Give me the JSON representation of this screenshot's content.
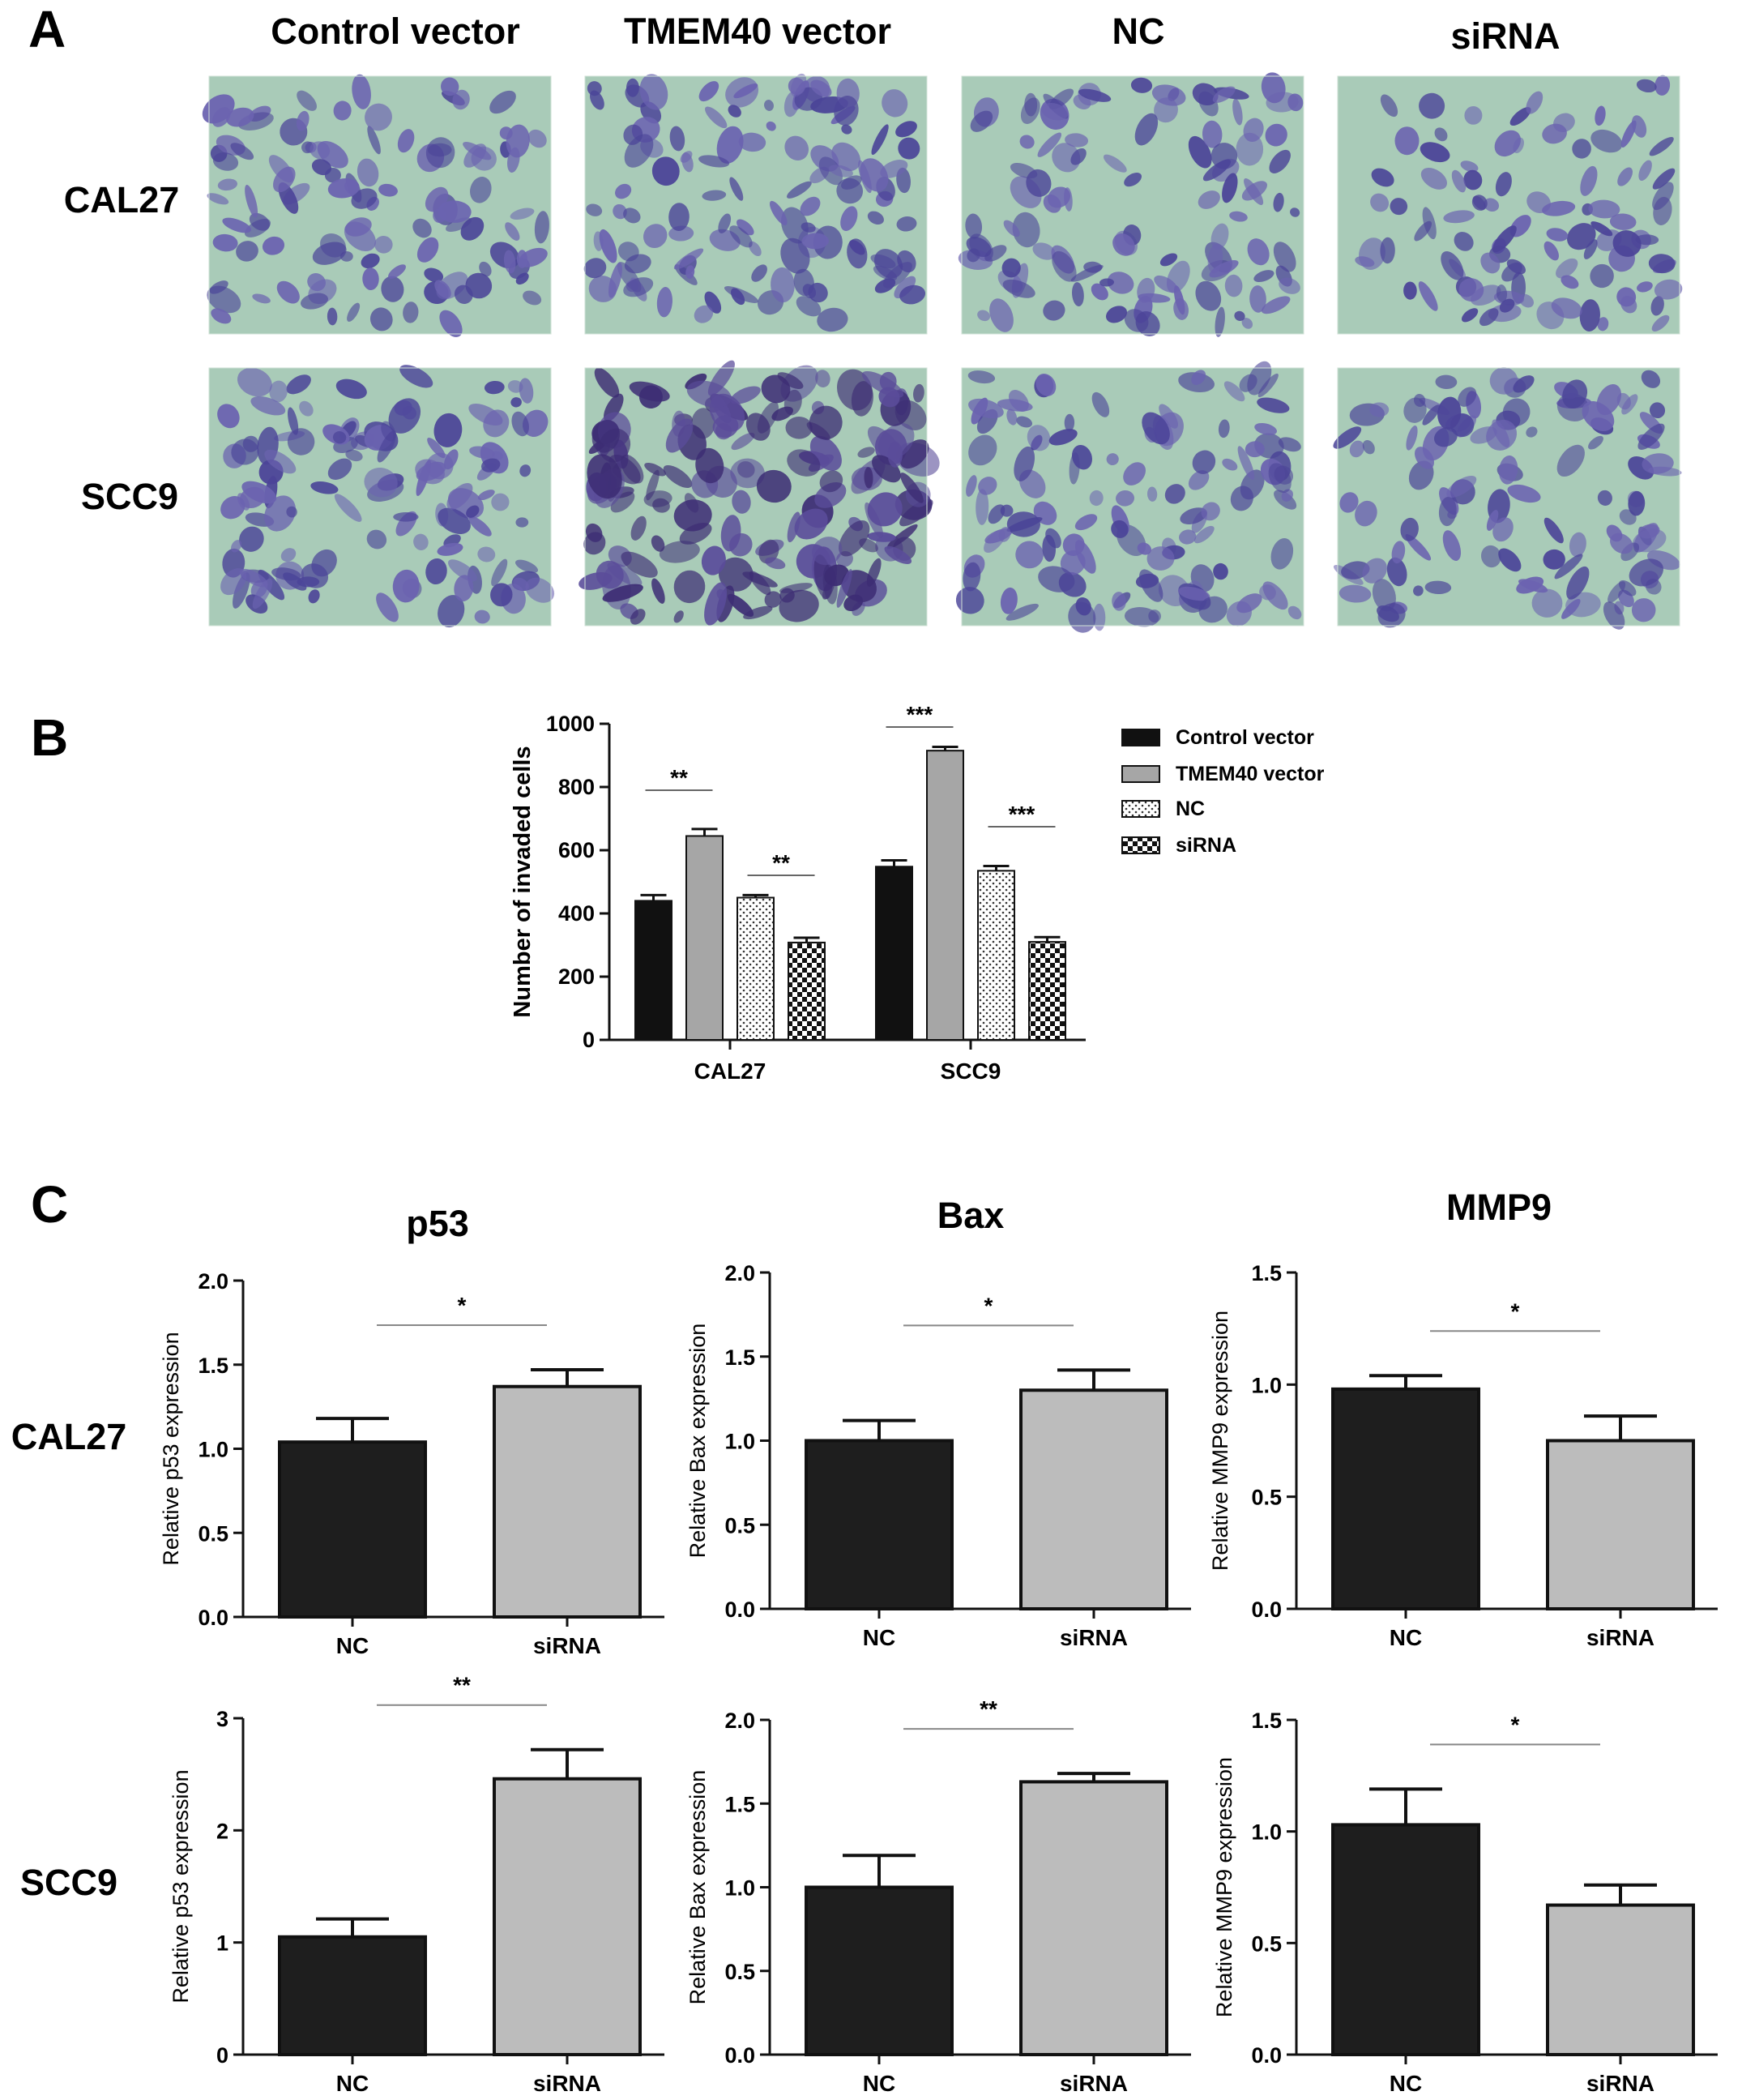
{
  "panels": {
    "a": "A",
    "b": "B",
    "c": "C"
  },
  "panel_a": {
    "columns": [
      "Control vector",
      "TMEM40 vector",
      "NC",
      "siRNA"
    ],
    "rows": [
      "CAL27",
      "SCC9"
    ],
    "tile_density": [
      [
        0.4,
        0.48,
        0.4,
        0.3
      ],
      [
        0.48,
        0.8,
        0.46,
        0.42
      ]
    ]
  },
  "chart_data": [
    {
      "type": "bar",
      "id": "B",
      "ylabel": "Number of invaded cells",
      "categories": [
        "CAL27",
        "SCC9"
      ],
      "series": [
        {
          "name": "Control vector",
          "values": [
            440,
            548
          ],
          "errors": [
            18,
            20
          ],
          "fill": "solid-black"
        },
        {
          "name": "TMEM40 vector",
          "values": [
            645,
            915
          ],
          "errors": [
            22,
            12
          ],
          "fill": "grey"
        },
        {
          "name": "NC",
          "values": [
            450,
            535
          ],
          "errors": [
            8,
            15
          ],
          "fill": "dotted"
        },
        {
          "name": "siRNA",
          "values": [
            308,
            310
          ],
          "errors": [
            15,
            15
          ],
          "fill": "checkered"
        }
      ],
      "ylim": [
        0,
        1000
      ],
      "yticks": [
        0,
        200,
        400,
        600,
        800,
        1000
      ],
      "significance": [
        {
          "category": "CAL27",
          "pair": [
            "Control vector",
            "TMEM40 vector"
          ],
          "label": "**"
        },
        {
          "category": "CAL27",
          "pair": [
            "NC",
            "siRNA"
          ],
          "label": "**"
        },
        {
          "category": "SCC9",
          "pair": [
            "Control vector",
            "TMEM40 vector"
          ],
          "label": "***"
        },
        {
          "category": "SCC9",
          "pair": [
            "NC",
            "siRNA"
          ],
          "label": "***"
        }
      ],
      "legend_position": "right"
    },
    {
      "type": "bar",
      "id": "C-p53-CAL27",
      "title": "p53",
      "row": "CAL27",
      "ylabel": "Relative p53 expression",
      "categories": [
        "NC",
        "siRNA"
      ],
      "values": [
        1.04,
        1.37
      ],
      "errors": [
        0.14,
        0.1
      ],
      "ylim": [
        0,
        2.0
      ],
      "yticks": [
        "0.0",
        "0.5",
        "1.0",
        "1.5",
        "2.0"
      ],
      "significance": "*",
      "colors": [
        "#1e1e1e",
        "#bcbcbc"
      ]
    },
    {
      "type": "bar",
      "id": "C-Bax-CAL27",
      "title": "Bax",
      "row": "CAL27",
      "ylabel": "Relative Bax expression",
      "categories": [
        "NC",
        "siRNA"
      ],
      "values": [
        1.0,
        1.3
      ],
      "errors": [
        0.12,
        0.12
      ],
      "ylim": [
        0,
        2.0
      ],
      "yticks": [
        "0.0",
        "0.5",
        "1.0",
        "1.5",
        "2.0"
      ],
      "significance": "*",
      "colors": [
        "#1e1e1e",
        "#bcbcbc"
      ]
    },
    {
      "type": "bar",
      "id": "C-MMP9-CAL27",
      "title": "MMP9",
      "row": "CAL27",
      "ylabel": "Relative MMP9 expression",
      "categories": [
        "NC",
        "siRNA"
      ],
      "values": [
        0.98,
        0.75
      ],
      "errors": [
        0.06,
        0.11
      ],
      "ylim": [
        0,
        1.5
      ],
      "yticks": [
        "0.0",
        "0.5",
        "1.0",
        "1.5"
      ],
      "significance": "*",
      "colors": [
        "#1e1e1e",
        "#bcbcbc"
      ]
    },
    {
      "type": "bar",
      "id": "C-p53-SCC9",
      "row": "SCC9",
      "ylabel": "Relative p53 expression",
      "categories": [
        "NC",
        "siRNA"
      ],
      "values": [
        1.05,
        2.46
      ],
      "errors": [
        0.16,
        0.26
      ],
      "ylim": [
        0,
        3
      ],
      "yticks": [
        "0",
        "1",
        "2",
        "3"
      ],
      "significance": "**",
      "colors": [
        "#1e1e1e",
        "#bcbcbc"
      ]
    },
    {
      "type": "bar",
      "id": "C-Bax-SCC9",
      "row": "SCC9",
      "ylabel": "Relative Bax expression",
      "categories": [
        "NC",
        "siRNA"
      ],
      "values": [
        1.0,
        1.63
      ],
      "errors": [
        0.19,
        0.05
      ],
      "ylim": [
        0,
        2.0
      ],
      "yticks": [
        "0.0",
        "0.5",
        "1.0",
        "1.5",
        "2.0"
      ],
      "significance": "**",
      "colors": [
        "#1e1e1e",
        "#bcbcbc"
      ]
    },
    {
      "type": "bar",
      "id": "C-MMP9-SCC9",
      "row": "SCC9",
      "ylabel": "Relative MMP9 expression",
      "categories": [
        "NC",
        "siRNA"
      ],
      "values": [
        1.03,
        0.67
      ],
      "errors": [
        0.16,
        0.09
      ],
      "ylim": [
        0,
        1.5
      ],
      "yticks": [
        "0.0",
        "0.5",
        "1.0",
        "1.5"
      ],
      "significance": "*",
      "colors": [
        "#1e1e1e",
        "#bcbcbc"
      ]
    }
  ]
}
